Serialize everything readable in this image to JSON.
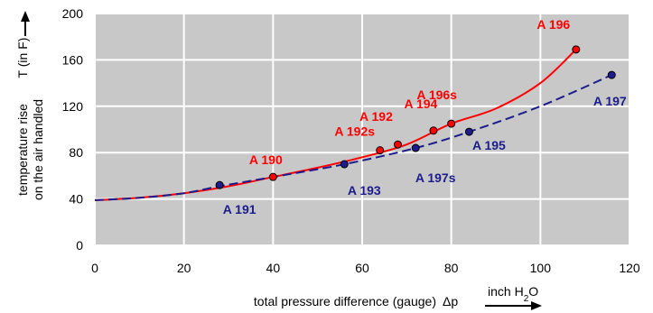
{
  "chart_data": {
    "type": "line",
    "xlabel": "total pressure difference (gauge)",
    "xlabel_symbol": "Δp",
    "xunit": "inch H2O",
    "ylabel_line1": "temperature rise",
    "ylabel_line2": "on the air handled",
    "yunit": "T   (in F)",
    "xlim": [
      0,
      120
    ],
    "ylim": [
      0,
      200
    ],
    "x_ticks": [
      "0",
      "20",
      "40",
      "60",
      "80",
      "100",
      "120"
    ],
    "y_ticks": [
      "0",
      "40",
      "80",
      "120",
      "160",
      "200"
    ],
    "grid": true,
    "background_color": "#c8c8c8",
    "series": [
      {
        "color": "#ff0000",
        "line_style": "solid",
        "curve": [
          [
            0,
            39
          ],
          [
            10,
            41
          ],
          [
            20,
            45
          ],
          [
            30,
            51
          ],
          [
            40,
            59
          ],
          [
            50,
            67
          ],
          [
            60,
            76
          ],
          [
            70,
            87
          ],
          [
            80,
            105
          ],
          [
            90,
            118
          ],
          [
            100,
            140
          ],
          [
            108,
            169
          ]
        ],
        "points": [
          {
            "label": "A 190",
            "x": 40,
            "y": 59
          },
          {
            "label": "A 192s",
            "x": 64,
            "y": 82
          },
          {
            "label": "A 192",
            "x": 68,
            "y": 87
          },
          {
            "label": "A 194",
            "x": 76,
            "y": 99
          },
          {
            "label": "A 196s",
            "x": 80,
            "y": 105
          },
          {
            "label": "A 196",
            "x": 108,
            "y": 169
          }
        ]
      },
      {
        "color": "#1c1c8c",
        "line_style": "dashed",
        "curve": [
          [
            0,
            39
          ],
          [
            10,
            41
          ],
          [
            20,
            45
          ],
          [
            28,
            51
          ],
          [
            40,
            59
          ],
          [
            56,
            70
          ],
          [
            72,
            84
          ],
          [
            84,
            98
          ],
          [
            100,
            120
          ],
          [
            116,
            147
          ]
        ],
        "points": [
          {
            "label": "A 191",
            "x": 28,
            "y": 52
          },
          {
            "label": "A 193",
            "x": 56,
            "y": 70
          },
          {
            "label": "A 197s",
            "x": 72,
            "y": 84
          },
          {
            "label": "A 195",
            "x": 84,
            "y": 98
          },
          {
            "label": "A 197",
            "x": 116,
            "y": 147
          }
        ]
      }
    ]
  }
}
